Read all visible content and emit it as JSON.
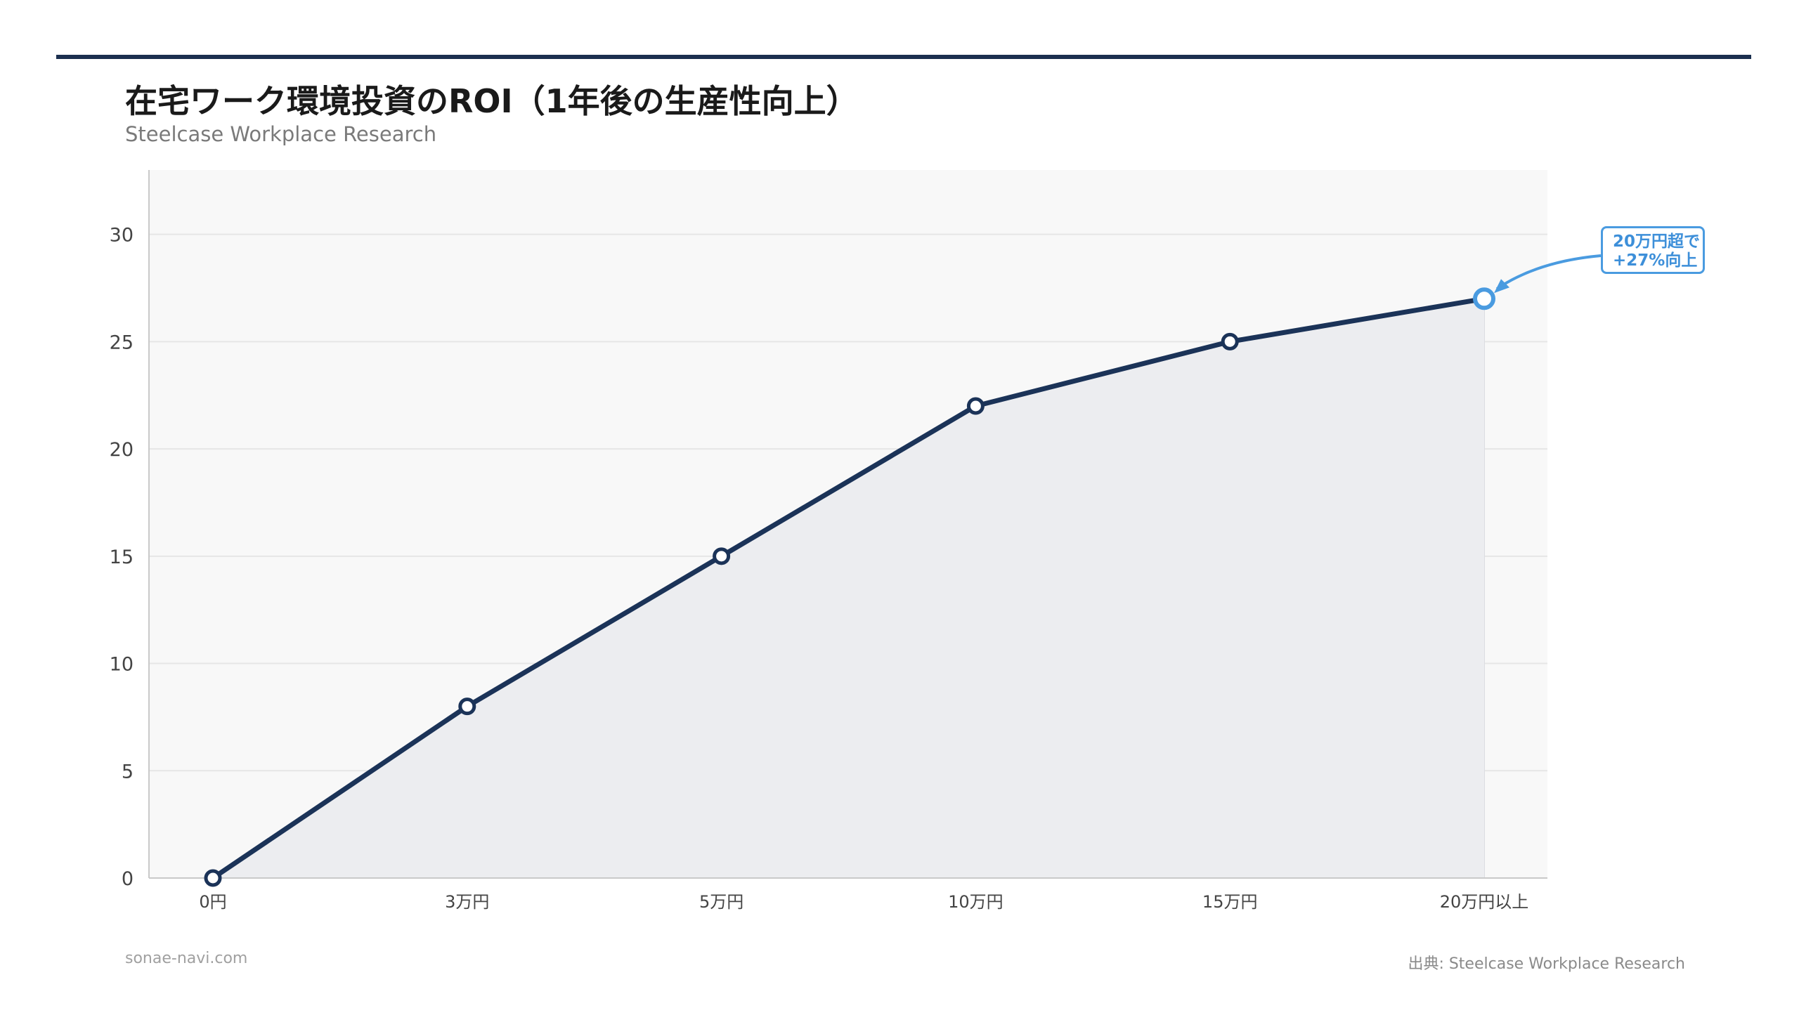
{
  "header": {
    "title": "在宅ワーク環境投資のROI（1年後の生産性向上）",
    "subtitle": "Steelcase Workplace Research"
  },
  "footer": {
    "site": "sonae-navi.com",
    "source": "出典: Steelcase Workplace Research"
  },
  "callout": {
    "line1": "20万円超で",
    "line2": "+27%向上"
  },
  "colors": {
    "line": "#1b3358",
    "highlight": "#4a9be0",
    "area": "#ecedf0",
    "plot_bg": "#f8f8f8"
  },
  "chart_data": {
    "type": "line",
    "categories": [
      "0円",
      "3万円",
      "5万円",
      "10万円",
      "15万円",
      "20万円以上"
    ],
    "values": [
      0,
      8,
      15,
      22,
      25,
      27
    ],
    "ylim": [
      0,
      33
    ],
    "yticks": [
      0,
      5,
      10,
      15,
      20,
      25,
      30
    ],
    "highlight_index": 5,
    "grid": true,
    "area_fill": true
  }
}
